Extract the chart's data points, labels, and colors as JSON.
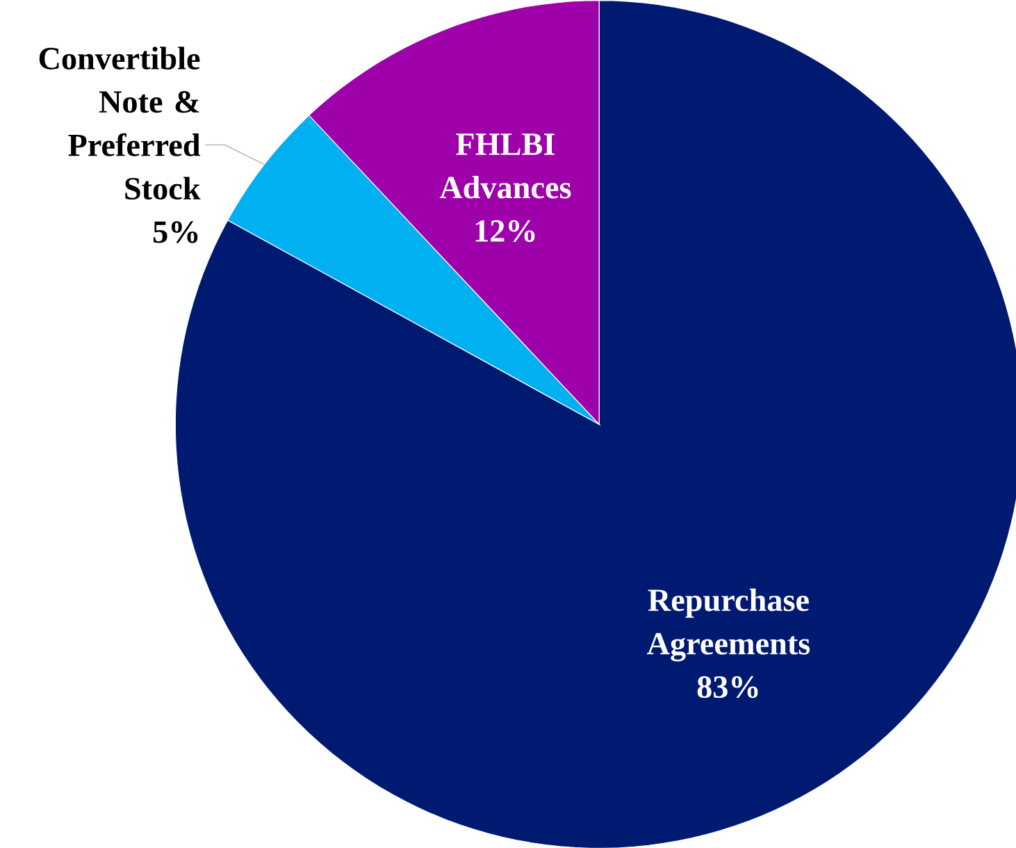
{
  "chart_data": {
    "type": "pie",
    "categories": [
      "Repurchase Agreements",
      "Convertible Note & Preferred Stock",
      "FHLBI Advances"
    ],
    "values": [
      83,
      5,
      12
    ],
    "value_labels": [
      "83%",
      "5%",
      "12%"
    ],
    "colors": [
      "#001a72",
      "#00b0f0",
      "#9e00aa"
    ]
  }
}
